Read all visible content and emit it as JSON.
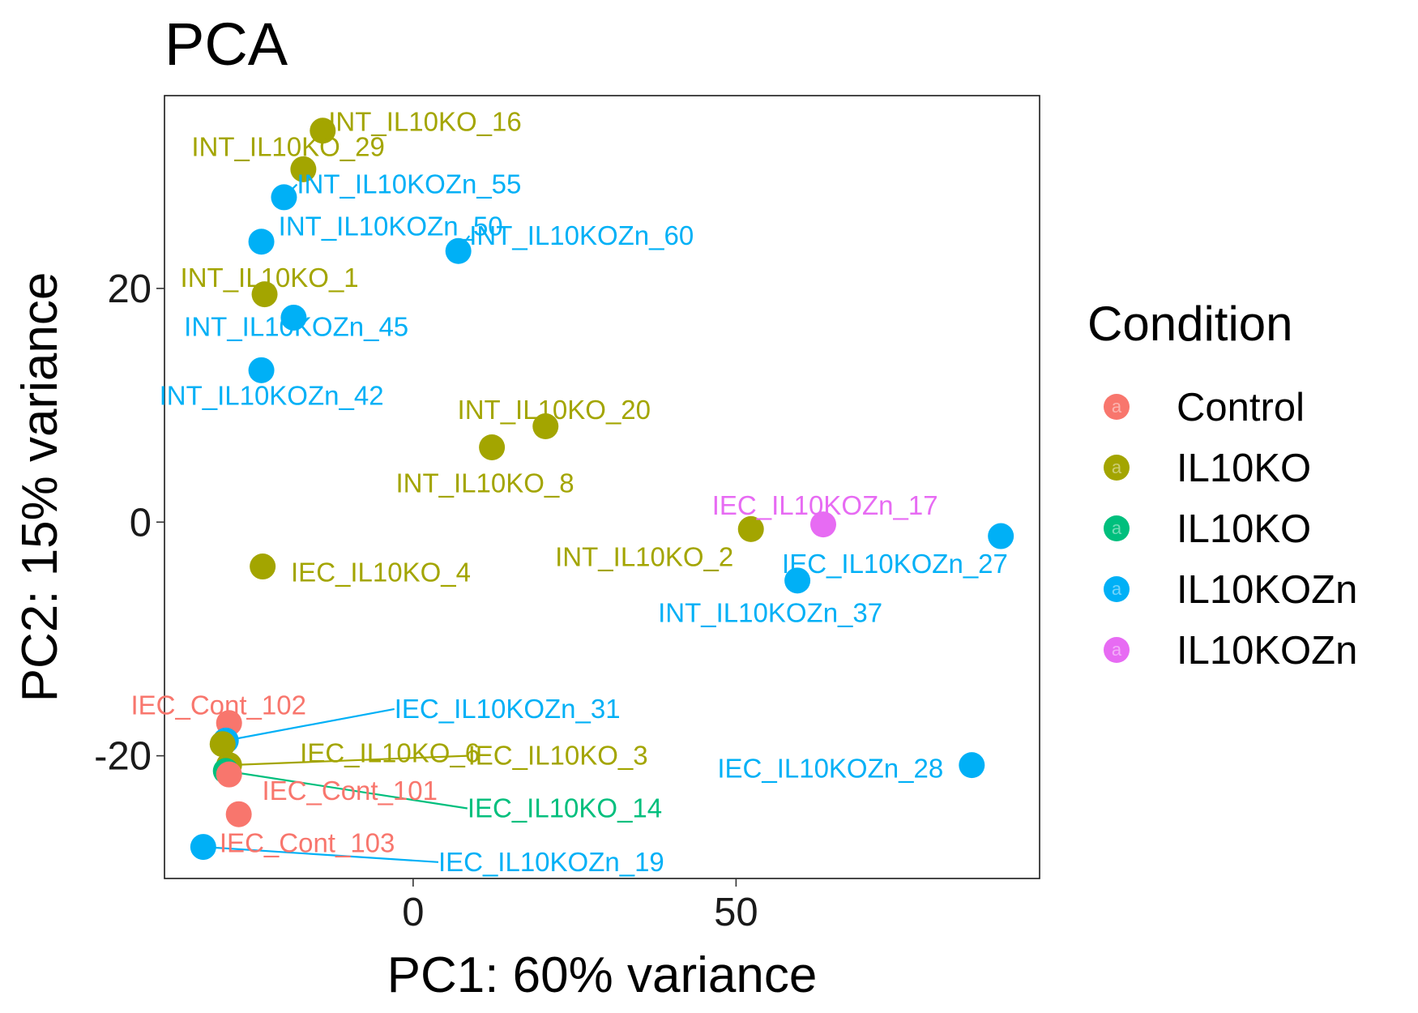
{
  "chart_data": {
    "type": "scatter",
    "title": "PCA",
    "xlabel": "PC1: 60% variance",
    "ylabel": "PC2: 15% variance",
    "xlim": [
      -38.5,
      97
    ],
    "ylim": [
      -30.5,
      36.5
    ],
    "x_ticks": [
      0,
      50
    ],
    "y_ticks": [
      -20,
      0,
      20
    ],
    "x_tick_labels": [
      "0",
      "50"
    ],
    "y_tick_labels": [
      "-20",
      "0",
      "20"
    ],
    "grid": false,
    "legend": {
      "title": "Condition",
      "placement": "right",
      "entries": [
        {
          "label": "Control",
          "color": "#F8766D"
        },
        {
          "label": "IL10KO",
          "color": "#A3A500"
        },
        {
          "label": "IL10KO",
          "color": "#00BF7D"
        },
        {
          "label": "IL10KOZn",
          "color": "#00B0F6"
        },
        {
          "label": "IL10KOZn",
          "color": "#E76BF3"
        }
      ]
    },
    "points": [
      {
        "name": "INT_IL10KO_16",
        "x": -14,
        "y": 33.5,
        "group": 1,
        "label_dx": 0.87,
        "label_dy": 0.75,
        "anchor": "start",
        "leader": true
      },
      {
        "name": "INT_IL10KO_29",
        "x": -17,
        "y": 30.2,
        "group": 1,
        "label_dx": -2.35,
        "label_dy": 1.9,
        "anchor": "middle",
        "leader": false
      },
      {
        "name": "INT_IL10KOZn_55",
        "x": -20,
        "y": 27.8,
        "group": 3,
        "label_dx": 2.0,
        "label_dy": 1.1,
        "anchor": "start",
        "leader": true
      },
      {
        "name": "INT_IL10KOZn_50",
        "x": -23.5,
        "y": 24.0,
        "group": 3,
        "label_dx": 2.65,
        "label_dy": 1.3,
        "anchor": "start",
        "leader": false
      },
      {
        "name": "INT_IL10KOZn_60",
        "x": 7,
        "y": 23.2,
        "group": 3,
        "label_dx": 1.7,
        "label_dy": 1.3,
        "anchor": "start",
        "leader": true
      },
      {
        "name": "INT_IL10KO_1",
        "x": -23,
        "y": 19.5,
        "group": 1,
        "label_dx": 0.76,
        "label_dy": 1.4,
        "anchor": "middle",
        "leader": false
      },
      {
        "name": "INT_IL10KOZn_45",
        "x": -18.5,
        "y": 17.5,
        "group": 3,
        "label_dx": 0.41,
        "label_dy": -0.8,
        "anchor": "middle",
        "leader": false
      },
      {
        "name": "INT_IL10KOZn_42",
        "x": -23.5,
        "y": 13.0,
        "group": 3,
        "label_dx": 1.57,
        "label_dy": -2.2,
        "anchor": "middle",
        "leader": false
      },
      {
        "name": "INT_IL10KO_20",
        "x": 20.5,
        "y": 8.2,
        "group": 1,
        "label_dx": 1.32,
        "label_dy": 1.4,
        "anchor": "middle",
        "leader": false
      },
      {
        "name": "INT_IL10KO_8",
        "x": 12.2,
        "y": 6.4,
        "group": 1,
        "label_dx": -1.07,
        "label_dy": -3.1,
        "anchor": "middle",
        "leader": false
      },
      {
        "name": "IEC_IL10KOZn_17",
        "x": 63.5,
        "y": -0.2,
        "group": 4,
        "label_dx": 0.27,
        "label_dy": 1.6,
        "anchor": "middle",
        "leader": false
      },
      {
        "name": "INT_IL10KO_2",
        "x": 52.3,
        "y": -0.6,
        "group": 1,
        "label_dx": -16.5,
        "label_dy": -2.4,
        "anchor": "middle",
        "leader": false
      },
      {
        "name": "IEC_IL10KOZn_27",
        "x": 91,
        "y": -1.2,
        "group": 3,
        "label_dx": -16.4,
        "label_dy": -2.4,
        "anchor": "middle",
        "leader": false
      },
      {
        "name": "IEC_IL10KO_4",
        "x": -23.3,
        "y": -3.8,
        "group": 1,
        "label_dx": 18.3,
        "label_dy": -0.5,
        "anchor": "middle",
        "leader": false
      },
      {
        "name": "INT_IL10KOZn_37",
        "x": 59.5,
        "y": -5.0,
        "group": 3,
        "label_dx": -4.2,
        "label_dy": -2.8,
        "anchor": "middle",
        "leader": false
      },
      {
        "name": "IEC_Cont_102",
        "x": -28.5,
        "y": -17.2,
        "group": 0,
        "label_dx": -1.63,
        "label_dy": 1.5,
        "anchor": "middle",
        "leader": false
      },
      {
        "name": "IEC_IL10KOZn_31",
        "x": -29,
        "y": -18.7,
        "group": 3,
        "label_dx": 26.1,
        "label_dy": 2.7,
        "anchor": "start",
        "leader": true
      },
      {
        "name": "IEC_IL10KO_6",
        "x": -29.5,
        "y": -19.0,
        "group": 1,
        "label_dx": 25.9,
        "label_dy": -0.8,
        "anchor": "middle",
        "leader": false
      },
      {
        "name": "IEC_IL10KO_3",
        "x": -28.5,
        "y": -20.8,
        "group": 1,
        "label_dx": 37.0,
        "label_dy": 0.8,
        "anchor": "start",
        "leader": true
      },
      {
        "name": "IEC_IL10KO_14",
        "x": -29,
        "y": -21.3,
        "group": 2,
        "label_dx": 37.4,
        "label_dy": -3.2,
        "anchor": "start",
        "leader": true
      },
      {
        "name": "IEC_Cont_101",
        "x": -28.5,
        "y": -21.6,
        "group": 0,
        "label_dx": 18.7,
        "label_dy": -1.4,
        "anchor": "middle",
        "leader": false
      },
      {
        "name": "IEC_Cont_103",
        "x": -27,
        "y": -25.0,
        "group": 0,
        "label_dx": 10.6,
        "label_dy": -2.5,
        "anchor": "middle",
        "leader": false
      },
      {
        "name": "IEC_IL10KOZn_19",
        "x": -32.5,
        "y": -27.8,
        "group": 3,
        "label_dx": 36.4,
        "label_dy": -1.3,
        "anchor": "start",
        "leader": true
      },
      {
        "name": "IEC_IL10KOZn_28",
        "x": 86.5,
        "y": -20.8,
        "group": 3,
        "label_dx": -21.9,
        "label_dy": -0.3,
        "anchor": "middle",
        "leader": false
      }
    ]
  }
}
